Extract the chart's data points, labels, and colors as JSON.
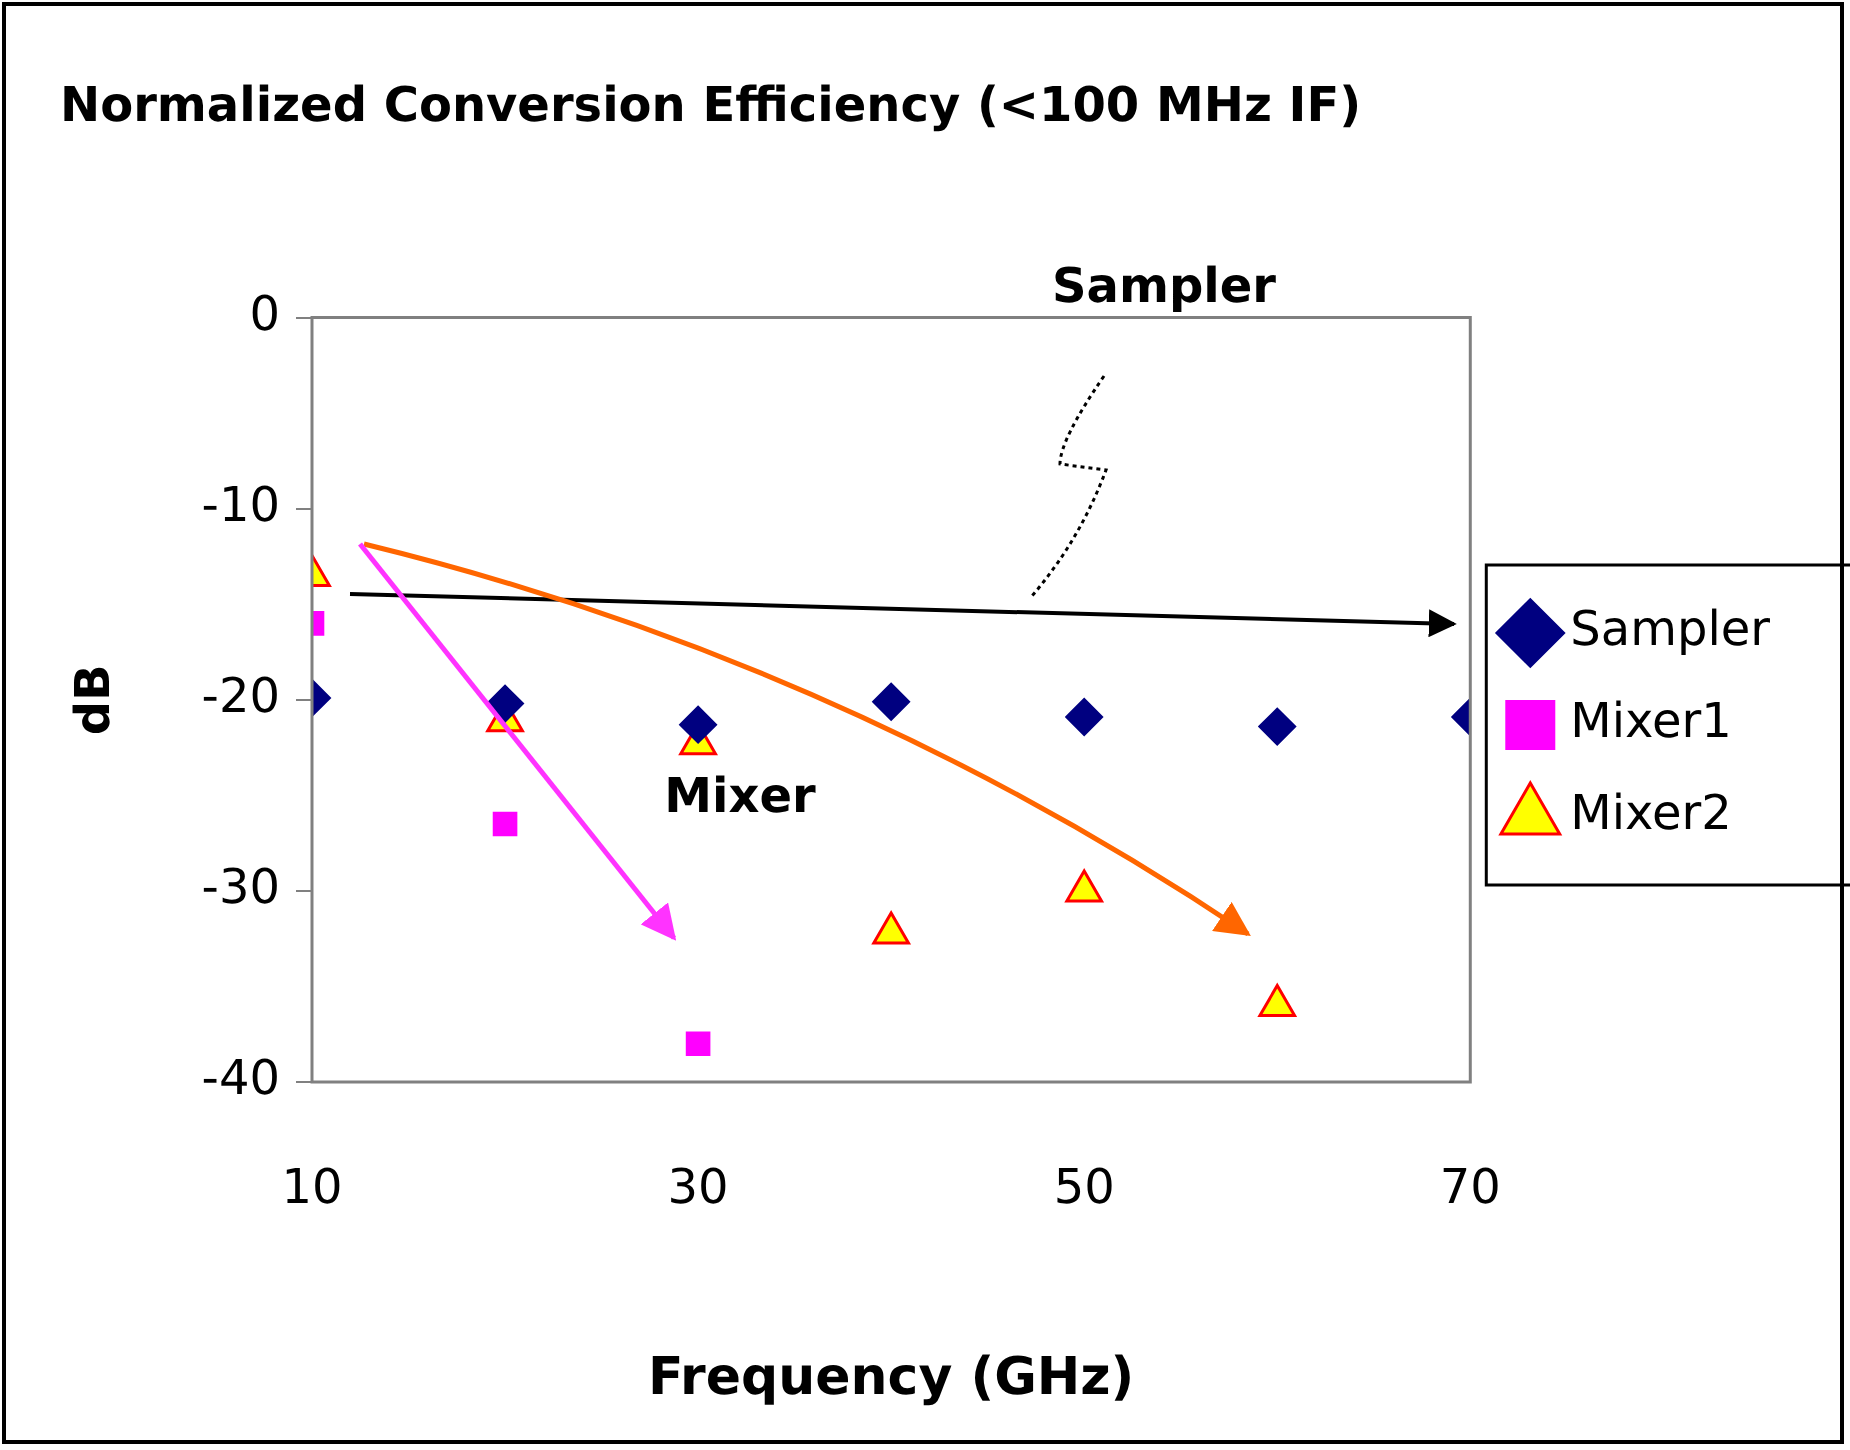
{
  "chart_data": {
    "type": "scatter",
    "title": "Normalized Conversion Efficiency (<100 MHz IF)",
    "xlabel": "Frequency (GHz)",
    "ylabel": "dB",
    "xlim": [
      10,
      70
    ],
    "xticks": [
      10,
      30,
      50,
      70
    ],
    "ylim": [
      -40,
      0
    ],
    "yticks": [
      -40,
      -30,
      -20,
      -10,
      0
    ],
    "grid": false,
    "legend": "right",
    "annotations": [
      "Sampler",
      "Mixer"
    ],
    "series": [
      {
        "name": "Sampler",
        "color": "#000080",
        "marker": "diamond",
        "x": [
          10,
          20,
          30,
          40,
          50,
          60,
          70
        ],
        "values": [
          -19.9,
          -20.2,
          -21.3,
          -20.1,
          -20.9,
          -21.4,
          -20.9
        ]
      },
      {
        "name": "Mixer1",
        "color": "#ff00ff",
        "marker": "square",
        "x": [
          10,
          20,
          30
        ],
        "values": [
          -16,
          -26.5,
          -38
        ]
      },
      {
        "name": "Mixer2",
        "color": "#ffff00",
        "marker": "triangle",
        "x": [
          10,
          20,
          30,
          40,
          50,
          60
        ],
        "values": [
          -13.5,
          -21.1,
          -22.3,
          -32.2,
          -30,
          -36
        ]
      }
    ]
  }
}
